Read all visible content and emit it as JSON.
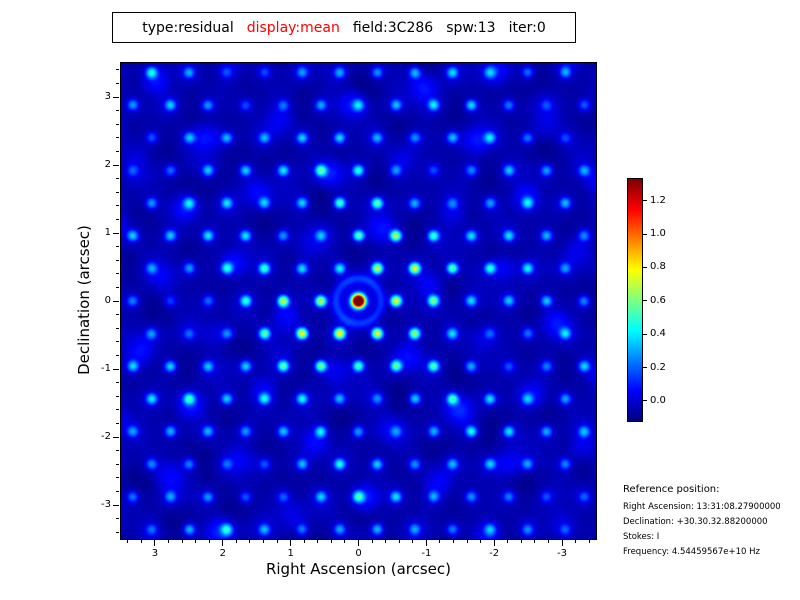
{
  "title_bar": {
    "segments": [
      {
        "text": "type:residual",
        "color": "#000000"
      },
      {
        "text": "display:mean",
        "color": "#ff0000"
      },
      {
        "text": "field:3C286",
        "color": "#000000"
      },
      {
        "text": "spw:13",
        "color": "#000000"
      },
      {
        "text": "iter:0",
        "color": "#000000"
      }
    ]
  },
  "plot": {
    "xlabel": "Right Ascension (arcsec)",
    "ylabel": "Declination (arcsec)",
    "x_ticks": [
      "3",
      "2",
      "1",
      "0",
      "-1",
      "-2",
      "-3"
    ],
    "y_ticks": [
      "3",
      "2",
      "1",
      "0",
      "-1",
      "-2",
      "-3"
    ]
  },
  "colorbar": {
    "ticks": [
      "1.2",
      "1.0",
      "0.8",
      "0.6",
      "0.4",
      "0.2",
      "0.0"
    ]
  },
  "reference": {
    "heading": "Reference position:",
    "lines": [
      "Right Ascension: 13:31:08.27900000",
      "Declination: +30.30.32.88200000",
      "Stokes: I",
      "Frequency: 4.54459567e+10 Hz"
    ]
  },
  "chart_data": {
    "type": "heatmap",
    "title": "type:residual display:mean field:3C286 spw:13 iter:0",
    "xlabel": "Right Ascension (arcsec)",
    "ylabel": "Declination (arcsec)",
    "x_ticks": [
      3,
      2,
      1,
      0,
      -1,
      -2,
      -3
    ],
    "y_ticks": [
      3,
      2,
      1,
      0,
      -1,
      -2,
      -3
    ],
    "xlim": [
      3.5,
      -3.5
    ],
    "ylim": [
      -3.5,
      3.5
    ],
    "colormap": "jet",
    "legend_position": "colorbar-right",
    "colorbar_ticks": [
      1.2,
      1.0,
      0.8,
      0.6,
      0.4,
      0.2,
      0.0
    ],
    "value_range": [
      -0.12,
      1.33
    ],
    "peak": {
      "x": 0.0,
      "y": 0.0,
      "value": 1.38
    },
    "description": "Interferometric residual map: deep blue noise background crossed by a hexagonal web of cyan/green sidelobe ripples radiating from a compact bright source (red core with yellow ring) at the phase center (0,0)."
  }
}
